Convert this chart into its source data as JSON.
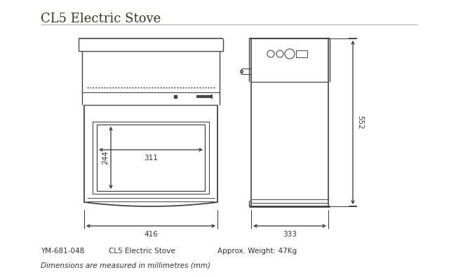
{
  "title": "CL5 Electric Stove",
  "bg_color": "#ffffff",
  "line_color": "#444444",
  "dim_color": "#333333",
  "text_color": "#333333",
  "footer_model": "YM-681-048",
  "footer_name": "CL5 Electric Stove",
  "footer_weight": "Approx. Weight: 47Kg",
  "footer_dim_note": "Dimensions are measured in millimetres (mm)",
  "dim_width_front": "416",
  "dim_width_side": "333",
  "dim_height_side": "552",
  "dim_glass_height": "244",
  "dim_glass_width": "311",
  "title_color": "#3a3520",
  "rule_color": "#aaaaaa"
}
